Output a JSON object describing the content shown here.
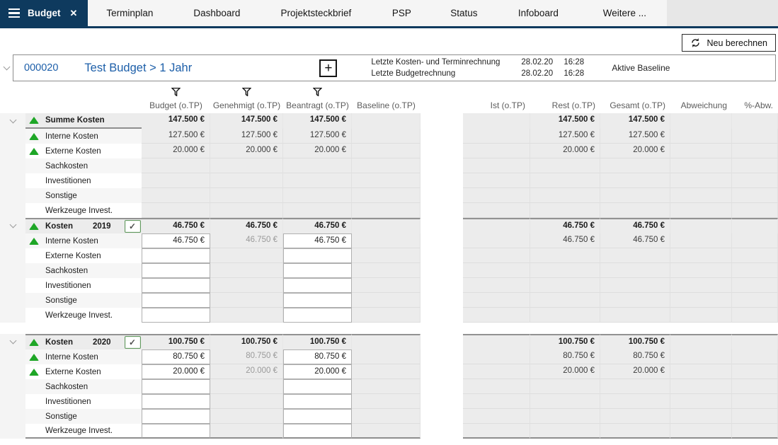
{
  "tabs": {
    "active": "Budget",
    "items": [
      "Terminplan",
      "Dashboard",
      "Projektsteckbrief",
      "PSP",
      "Status",
      "Infoboard",
      "Weitere ..."
    ]
  },
  "toolbar": {
    "recalculate": "Neu berechnen"
  },
  "project": {
    "id": "000020",
    "title": "Test Budget > 1 Jahr",
    "add": "+",
    "info_rows": [
      {
        "label": "Letzte Kosten- und Terminrechnung",
        "date": "28.02.20",
        "time": "16:28"
      },
      {
        "label": "Letzte Budgetrechnung",
        "date": "28.02.20",
        "time": "16:28"
      }
    ],
    "baseline_label": "Aktive Baseline"
  },
  "colors": {
    "accent_navy": "#0e3a5e",
    "link_blue": "#1d5fa9",
    "indicator_green": "#1ea626"
  },
  "table": {
    "columns": [
      "Budget (o.TP)",
      "Genehmigt (o.TP)",
      "Beantragt (o.TP)",
      "Baseline (o.TP)",
      "Ist (o.TP)",
      "Rest (o.TP)",
      "Gesamt (o.TP)",
      "Abweichung",
      "%-Abw."
    ],
    "groups": [
      {
        "label": "Summe Kosten",
        "year": "",
        "checkbox": false,
        "checked": false,
        "indicator": true,
        "editable": false,
        "gap_before": false,
        "values": {
          "budget": "147.500 €",
          "genehmigt": "147.500 €",
          "beantragt": "147.500 €",
          "baseline": "",
          "ist": "",
          "rest": "147.500 €",
          "gesamt": "147.500 €",
          "abweichung": "",
          "pabw": ""
        },
        "rows": [
          {
            "label": "Interne Kosten",
            "indicator": true,
            "values": {
              "budget": "127.500 €",
              "genehmigt": "127.500 €",
              "beantragt": "127.500 €",
              "baseline": "",
              "ist": "",
              "rest": "127.500 €",
              "gesamt": "127.500 €",
              "abweichung": "",
              "pabw": ""
            }
          },
          {
            "label": "Externe Kosten",
            "indicator": true,
            "values": {
              "budget": "20.000 €",
              "genehmigt": "20.000 €",
              "beantragt": "20.000 €",
              "baseline": "",
              "ist": "",
              "rest": "20.000 €",
              "gesamt": "20.000 €",
              "abweichung": "",
              "pabw": ""
            }
          },
          {
            "label": "Sachkosten",
            "indicator": false,
            "values": {}
          },
          {
            "label": "Investitionen",
            "indicator": false,
            "values": {}
          },
          {
            "label": "Sonstige",
            "indicator": false,
            "values": {}
          },
          {
            "label": "Werkzeuge Invest.",
            "indicator": false,
            "values": {}
          }
        ]
      },
      {
        "label": "Kosten",
        "year": "2019",
        "checkbox": true,
        "checked": true,
        "indicator": true,
        "editable": true,
        "gap_before": false,
        "values": {
          "budget": "46.750 €",
          "genehmigt": "46.750 €",
          "beantragt": "46.750 €",
          "baseline": "",
          "ist": "",
          "rest": "46.750 €",
          "gesamt": "46.750 €",
          "abweichung": "",
          "pabw": ""
        },
        "rows": [
          {
            "label": "Interne Kosten",
            "indicator": true,
            "values": {
              "budget": "46.750 €",
              "genehmigt": "46.750 €",
              "beantragt": "46.750 €",
              "baseline": "",
              "ist": "",
              "rest": "46.750 €",
              "gesamt": "46.750 €",
              "abweichung": "",
              "pabw": ""
            }
          },
          {
            "label": "Externe Kosten",
            "indicator": false,
            "values": {}
          },
          {
            "label": "Sachkosten",
            "indicator": false,
            "values": {}
          },
          {
            "label": "Investitionen",
            "indicator": false,
            "values": {}
          },
          {
            "label": "Sonstige",
            "indicator": false,
            "values": {}
          },
          {
            "label": "Werkzeuge Invest.",
            "indicator": false,
            "values": {}
          }
        ]
      },
      {
        "label": "Kosten",
        "year": "2020",
        "checkbox": true,
        "checked": true,
        "indicator": true,
        "editable": true,
        "gap_before": true,
        "values": {
          "budget": "100.750 €",
          "genehmigt": "100.750 €",
          "beantragt": "100.750 €",
          "baseline": "",
          "ist": "",
          "rest": "100.750 €",
          "gesamt": "100.750 €",
          "abweichung": "",
          "pabw": ""
        },
        "rows": [
          {
            "label": "Interne Kosten",
            "indicator": true,
            "values": {
              "budget": "80.750 €",
              "genehmigt": "80.750 €",
              "beantragt": "80.750 €",
              "baseline": "",
              "ist": "",
              "rest": "80.750 €",
              "gesamt": "80.750 €",
              "abweichung": "",
              "pabw": ""
            }
          },
          {
            "label": "Externe Kosten",
            "indicator": true,
            "values": {
              "budget": "20.000 €",
              "genehmigt": "20.000 €",
              "beantragt": "20.000 €",
              "baseline": "",
              "ist": "",
              "rest": "20.000 €",
              "gesamt": "20.000 €",
              "abweichung": "",
              "pabw": ""
            }
          },
          {
            "label": "Sachkosten",
            "indicator": false,
            "values": {}
          },
          {
            "label": "Investitionen",
            "indicator": false,
            "values": {}
          },
          {
            "label": "Sonstige",
            "indicator": false,
            "values": {}
          },
          {
            "label": "Werkzeuge Invest.",
            "indicator": false,
            "values": {}
          }
        ]
      }
    ]
  }
}
